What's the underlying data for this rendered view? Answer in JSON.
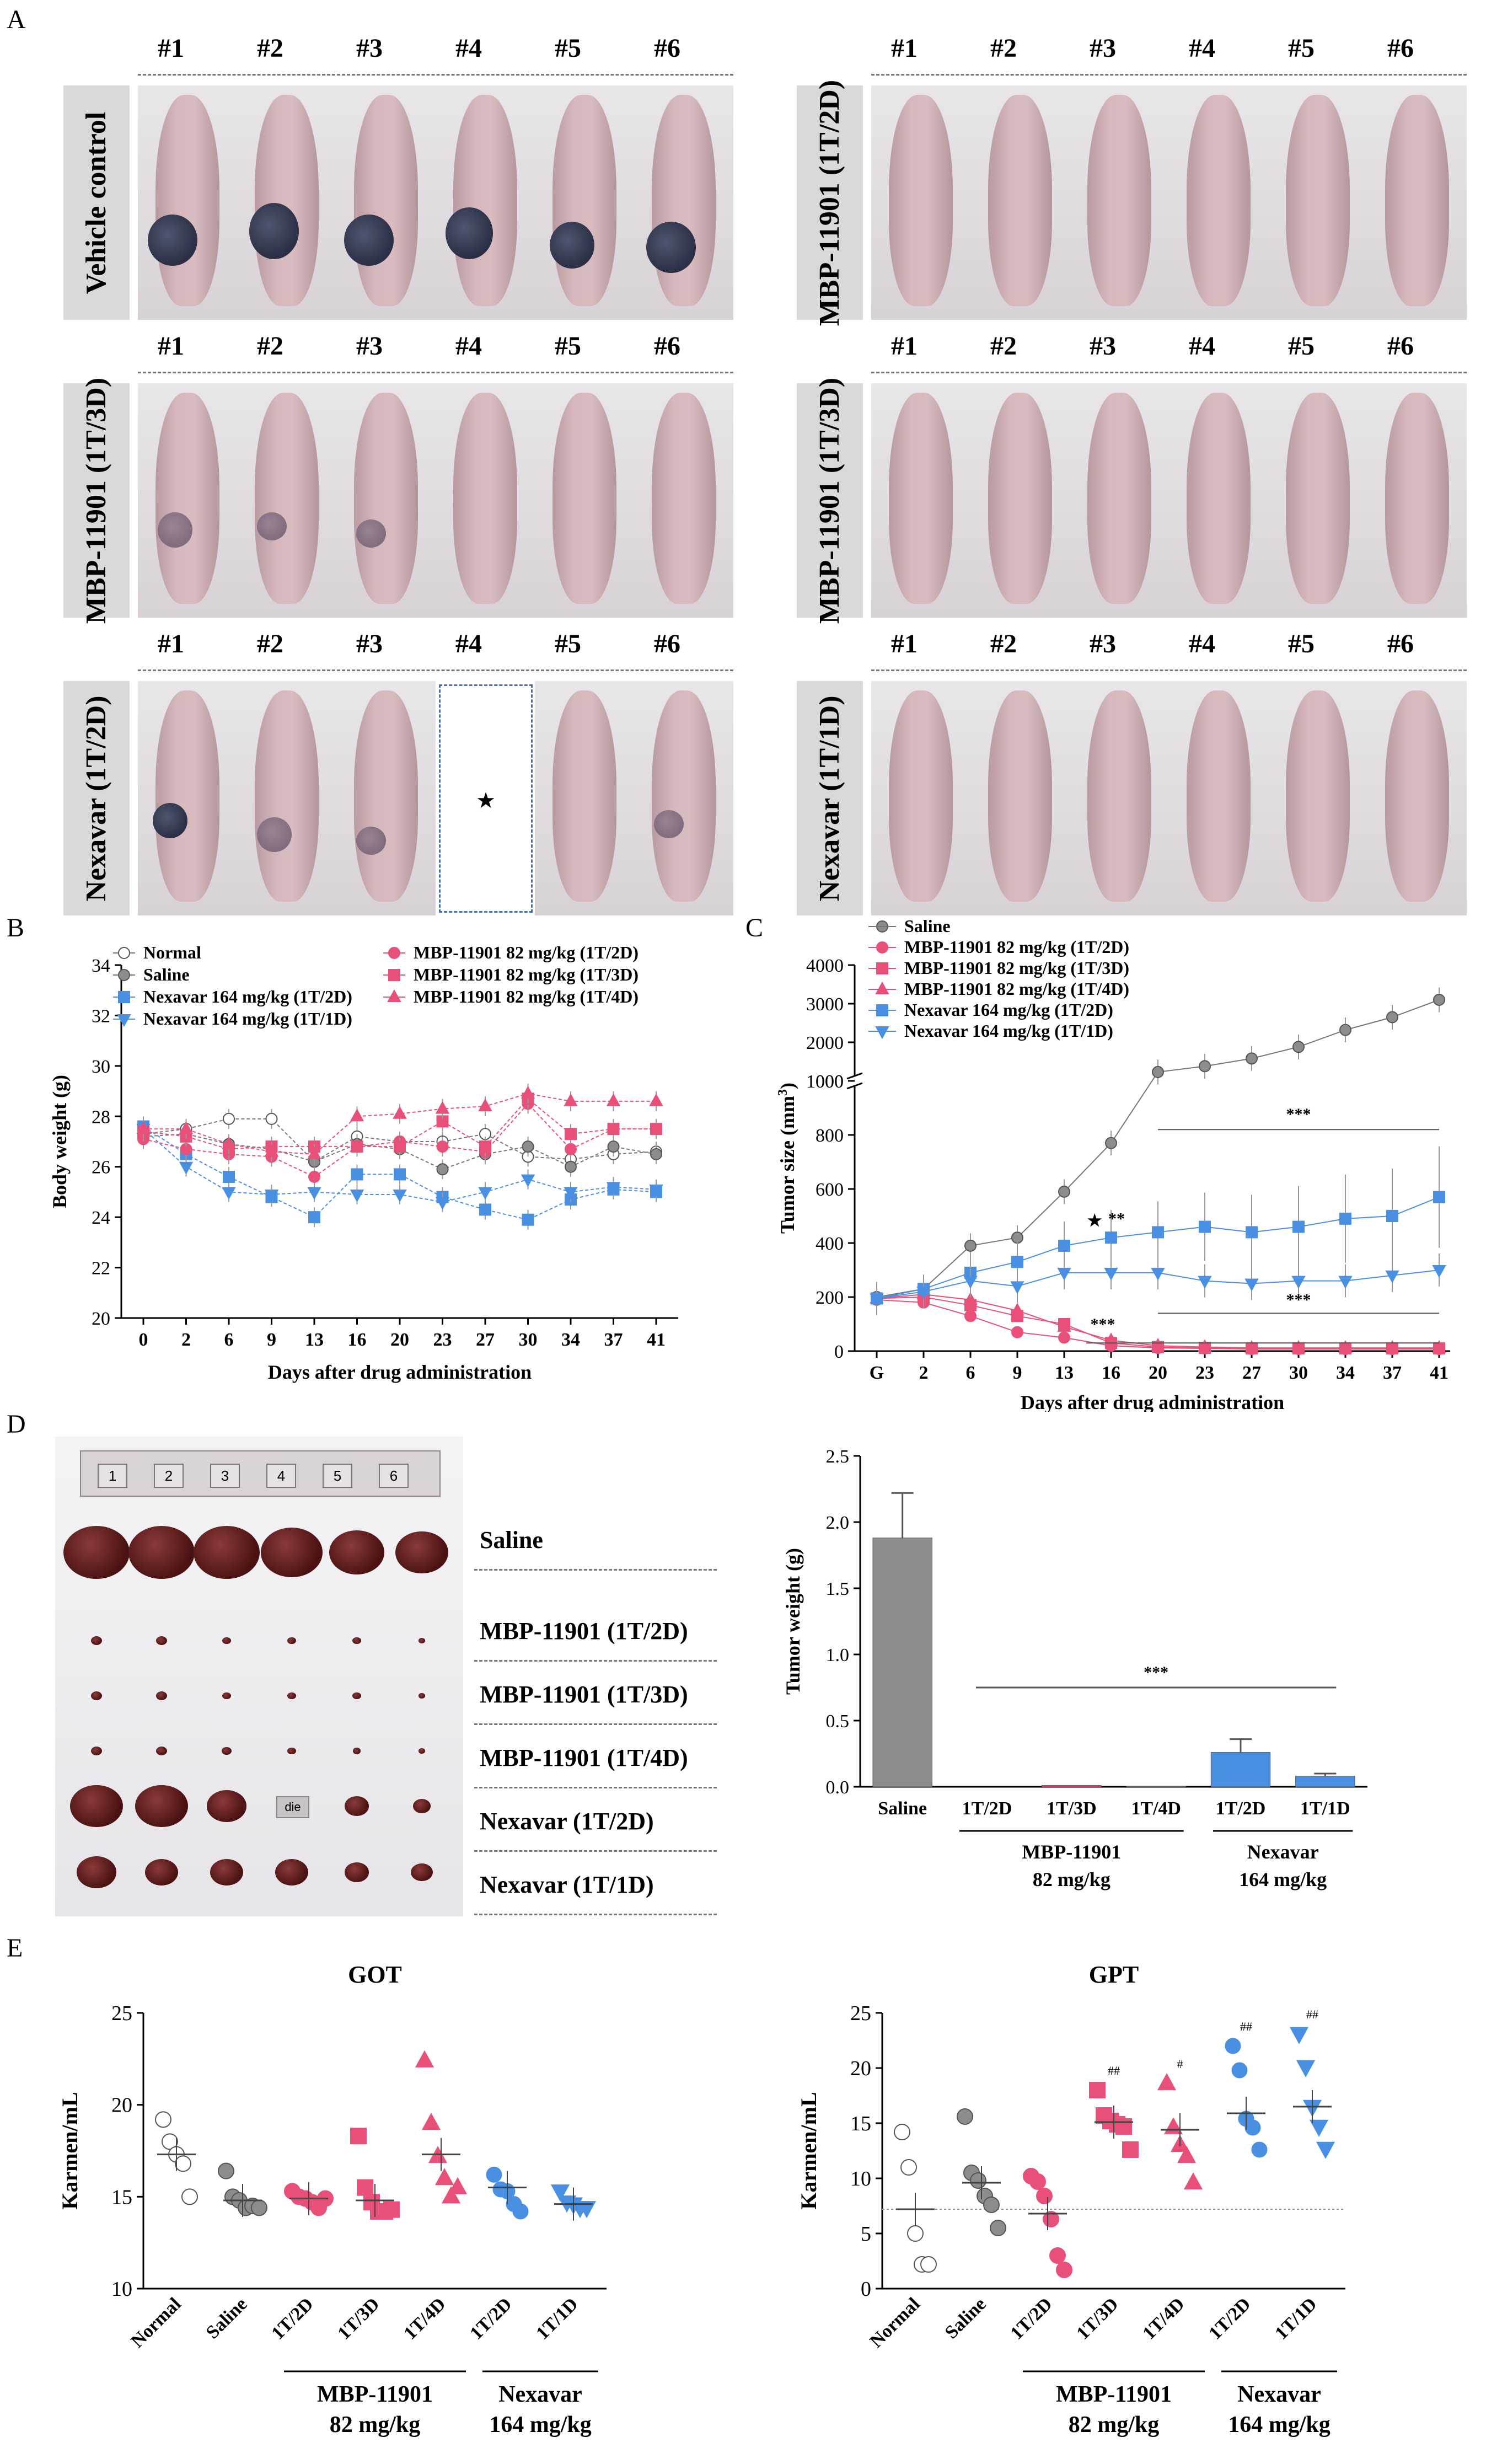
{
  "panel_labels": {
    "a": "A",
    "b": "B",
    "c": "C",
    "d": "D",
    "e": "E"
  },
  "panel_a": {
    "mouse_numbers": [
      "#1",
      "#2",
      "#3",
      "#4",
      "#5",
      "#6"
    ],
    "groups": [
      {
        "label": "Vehicle control"
      },
      {
        "label": "MBP-11901 (1T/2D)"
      },
      {
        "label": "MBP-11901 (1T/3D)"
      },
      {
        "label": "MBP-11901 (1T/3D)"
      },
      {
        "label": "Nexavar (1T/2D)"
      },
      {
        "label": "Nexavar (1T/1D)"
      }
    ],
    "dead_marker": "★"
  },
  "panel_d_photo": {
    "ruler_numbers": [
      "1",
      "2",
      "3",
      "4",
      "5",
      "6"
    ],
    "die_label": "die",
    "row_labels": [
      "Saline",
      "MBP-11901 (1T/2D)",
      "MBP-11901 (1T/3D)",
      "MBP-11901 (1T/4D)",
      "Nexavar (1T/2D)",
      "Nexavar (1T/1D)"
    ]
  },
  "colors": {
    "gray": "#8c8c8c",
    "pink": "#e8507a",
    "blue": "#4a90e2",
    "dark": "#333333"
  },
  "chart_data": [
    {
      "type": "line",
      "id": "B",
      "title": "",
      "xlabel": "Days after drug administration",
      "ylabel": "Body weight (g)",
      "x": [
        0,
        2,
        6,
        9,
        13,
        16,
        20,
        23,
        27,
        30,
        34,
        37,
        41
      ],
      "ylim": [
        20,
        34
      ],
      "yticks": [
        20,
        22,
        24,
        26,
        28,
        30,
        32,
        34
      ],
      "series": [
        {
          "name": "Normal",
          "marker": "open-circle",
          "values": [
            27.3,
            27.5,
            27.9,
            27.9,
            26.2,
            27.2,
            27.0,
            27.0,
            27.3,
            26.4,
            26.3,
            26.5,
            26.6
          ]
        },
        {
          "name": "Saline",
          "marker": "gray-circle",
          "values": [
            27.2,
            27.3,
            26.9,
            26.7,
            26.2,
            26.9,
            26.7,
            25.9,
            26.5,
            26.8,
            26.0,
            26.8,
            26.5
          ]
        },
        {
          "name": "Nexavar 164 mg/kg (1T/2D)",
          "marker": "blue-square",
          "values": [
            27.6,
            26.5,
            25.6,
            24.8,
            24.0,
            25.7,
            25.7,
            24.8,
            24.3,
            23.9,
            24.7,
            25.1,
            25.0
          ]
        },
        {
          "name": "Nexavar 164 mg/kg (1T/1D)",
          "marker": "blue-triangle-down",
          "values": [
            27.5,
            26.0,
            25.0,
            24.9,
            25.0,
            24.9,
            24.9,
            24.6,
            25.0,
            25.5,
            25.0,
            25.2,
            25.1
          ]
        },
        {
          "name": "MBP-11901 82 mg/kg (1T/2D)",
          "marker": "pink-circle",
          "values": [
            27.1,
            26.7,
            26.5,
            26.4,
            25.6,
            26.8,
            27.0,
            26.8,
            26.6,
            28.5,
            26.7,
            27.5,
            27.5
          ]
        },
        {
          "name": "MBP-11901 82 mg/kg (1T/3D)",
          "marker": "pink-square",
          "values": [
            27.4,
            27.2,
            26.7,
            26.8,
            26.8,
            26.8,
            26.8,
            27.8,
            26.8,
            28.7,
            27.3,
            27.5,
            27.5
          ]
        },
        {
          "name": "MBP-11901 82 mg/kg (1T/4D)",
          "marker": "pink-triangle",
          "values": [
            27.5,
            27.5,
            26.9,
            26.6,
            26.5,
            28.0,
            28.1,
            28.3,
            28.4,
            28.9,
            28.6,
            28.6,
            28.6
          ]
        }
      ]
    },
    {
      "type": "line",
      "id": "C",
      "xlabel": "Days after drug administration",
      "ylabel": "Tumor size (mm³)",
      "ylabel_plain": "Tumor size (mm",
      "ylabel_sup": "3",
      "ylabel_tail": ")",
      "x_ticklabels": [
        "G",
        "2",
        "6",
        "9",
        "13",
        "16",
        "20",
        "23",
        "27",
        "30",
        "34",
        "37",
        "41"
      ],
      "yticks_lower": [
        0,
        200,
        400,
        600,
        800,
        1000
      ],
      "yticks_upper": [
        1000,
        2000,
        3000,
        4000
      ],
      "series": [
        {
          "name": "Saline",
          "marker": "gray-circle",
          "values": [
            200,
            230,
            390,
            420,
            590,
            770,
            1230,
            1380,
            1580,
            1880,
            2320,
            2650,
            3100
          ]
        },
        {
          "name": "MBP-11901 82 mg/kg (1T/2D)",
          "marker": "pink-circle",
          "values": [
            190,
            180,
            130,
            70,
            50,
            20,
            12,
            10,
            8,
            8,
            8,
            8,
            8
          ]
        },
        {
          "name": "MBP-11901 82 mg/kg (1T/3D)",
          "marker": "pink-square",
          "values": [
            195,
            200,
            170,
            130,
            100,
            30,
            15,
            12,
            10,
            10,
            10,
            10,
            10
          ]
        },
        {
          "name": "MBP-11901 82 mg/kg (1T/4D)",
          "marker": "pink-triangle",
          "values": [
            195,
            210,
            190,
            150,
            90,
            40,
            20,
            15,
            12,
            12,
            12,
            12,
            12
          ]
        },
        {
          "name": "Nexavar 164 mg/kg (1T/2D)",
          "marker": "blue-square",
          "values": [
            195,
            230,
            290,
            330,
            390,
            420,
            440,
            460,
            440,
            460,
            490,
            500,
            570
          ]
        },
        {
          "name": "Nexavar 164 mg/kg (1T/1D)",
          "marker": "blue-triangle-down",
          "values": [
            195,
            220,
            260,
            240,
            290,
            290,
            290,
            260,
            250,
            260,
            260,
            280,
            300
          ]
        }
      ],
      "annotations": [
        "***",
        "★",
        "**",
        "***",
        "***"
      ]
    },
    {
      "type": "bar",
      "id": "D",
      "ylabel": "Tumor weight (g)",
      "categories": [
        "Saline",
        "1T/2D",
        "1T/3D",
        "1T/4D",
        "1T/2D",
        "1T/1D"
      ],
      "values": [
        1.88,
        0.0,
        0.01,
        0.005,
        0.26,
        0.08
      ],
      "errors": [
        0.34,
        0.0,
        0.0,
        0.0,
        0.1,
        0.02
      ],
      "ylim": [
        0,
        2.5
      ],
      "yticks": [
        "0.0",
        "0.5",
        "1.0",
        "1.5",
        "2.0",
        "2.5"
      ],
      "annotation": "***",
      "group_labels": [
        {
          "line1": "MBP-11901",
          "line2": "82 mg/kg"
        },
        {
          "line1": "Nexavar",
          "line2": "164 mg/kg"
        }
      ]
    },
    {
      "type": "scatter",
      "id": "GOT",
      "title": "GOT",
      "ylabel": "Karmen/mL",
      "ylim": [
        10,
        25
      ],
      "yticks": [
        10,
        15,
        20,
        25
      ],
      "categories": [
        "Normal",
        "Saline",
        "1T/2D",
        "1T/3D",
        "1T/4D",
        "1T/2D",
        "1T/1D"
      ],
      "means": [
        17.3,
        14.8,
        14.9,
        14.8,
        17.3,
        15.5,
        14.6
      ],
      "points": [
        [
          19.2,
          18.0,
          17.3,
          16.8,
          15.0
        ],
        [
          16.4,
          15.0,
          14.8,
          14.4,
          14.5,
          14.4
        ],
        [
          15.3,
          15.0,
          14.9,
          14.7,
          14.4,
          14.9
        ],
        [
          18.3,
          15.5,
          14.7,
          14.2,
          14.2,
          14.3
        ],
        [
          22.4,
          19.0,
          17.2,
          16.0,
          15.0,
          15.5
        ],
        [
          16.2,
          15.4,
          15.3,
          14.6,
          14.2
        ],
        [
          15.3,
          14.7,
          14.6,
          14.4,
          14.4
        ]
      ],
      "group_labels": [
        {
          "line1": "MBP-11901",
          "line2": "82 mg/kg"
        },
        {
          "line1": "Nexavar",
          "line2": "164 mg/kg"
        }
      ]
    },
    {
      "type": "scatter",
      "id": "GPT",
      "title": "GPT",
      "ylabel": "Karmen/mL",
      "ylim": [
        0,
        25
      ],
      "yticks": [
        0,
        5,
        10,
        15,
        20,
        25
      ],
      "categories": [
        "Normal",
        "Saline",
        "1T/2D",
        "1T/3D",
        "1T/4D",
        "1T/2D",
        "1T/1D"
      ],
      "means": [
        7.2,
        9.6,
        6.8,
        15.1,
        14.4,
        15.9,
        16.5
      ],
      "points": [
        [
          14.2,
          11.0,
          5.0,
          2.2,
          2.2
        ],
        [
          15.6,
          10.5,
          9.8,
          8.4,
          7.6,
          5.5
        ],
        [
          10.2,
          9.7,
          8.4,
          6.3,
          3.0,
          1.7
        ],
        [
          18.0,
          15.7,
          15.2,
          14.9,
          14.7,
          12.6
        ],
        [
          18.6,
          14.6,
          13.0,
          12.0,
          9.6
        ],
        [
          22.0,
          19.8,
          15.4,
          14.6,
          12.6
        ],
        [
          23.1,
          20.1,
          16.5,
          14.7,
          12.7
        ]
      ],
      "significance": [
        "",
        "",
        "",
        "##",
        "#",
        "##",
        "##"
      ],
      "reference_line": 7.2,
      "group_labels": [
        {
          "line1": "MBP-11901",
          "line2": "82 mg/kg"
        },
        {
          "line1": "Nexavar",
          "line2": "164 mg/kg"
        }
      ]
    }
  ]
}
